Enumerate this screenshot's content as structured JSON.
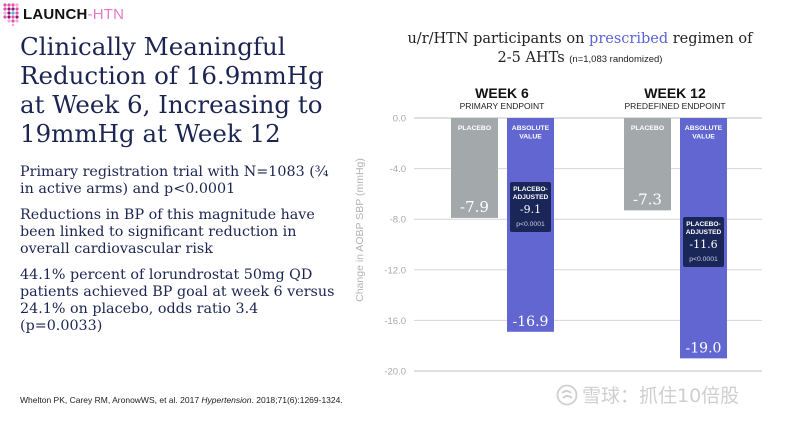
{
  "logo": {
    "brand": "LAUNCH",
    "suffix": "-HTN",
    "icon": "dot-grid-logo-icon"
  },
  "title": "Clinically Meaningful Reduction of 16.9mmHg at Week 6, Increasing to 19mmHg at Week 12",
  "bullets": [
    "Primary registration trial with N=1083 (¾ in active arms) and p<0.0001",
    "Reductions in BP of this magnitude have been linked to significant reduction in overall cardiovascular risk",
    "44.1% percent of lorundrostat 50mg QD patients achieved BP goal at week 6 versus 24.1% on placebo, odds ratio 3.4 (p=0.0033)"
  ],
  "citation": {
    "authors": "Whelton PK, Carey RM, AronowWS, et al. 2017 ",
    "journal": "Hypertension",
    "details": ". 2018;71(6):1269-1324."
  },
  "chart_title": {
    "part1": "u/r/HTN participants on ",
    "highlight": "prescribed",
    "part2": " regimen of",
    "line2": "2-5 AHTs ",
    "note": "(n=1,083 randomized)"
  },
  "colors": {
    "placebo": "#a3a8ab",
    "absolute": "#6266d1",
    "adjusted_box": "#1a2657",
    "grid": "#d6d6d6",
    "highlight": "#5a63d3"
  },
  "watermark": {
    "icon": "snowball-logo-icon",
    "text": "雪球：抓住10倍股"
  },
  "chart_data": {
    "type": "bar",
    "title": "u/r/HTN participants on prescribed regimen of 2-5 AHTs (n=1,083 randomized)",
    "xlabel": "",
    "ylabel": "Change in AOBP SBP (mmHg)",
    "ylim": [
      -20,
      0
    ],
    "yticks": [
      "0.0",
      "-4.0",
      "-8.0",
      "-12.0",
      "-16.0",
      "-20.0"
    ],
    "ytick_values": [
      0,
      -4,
      -8,
      -12,
      -16,
      -20
    ],
    "grid": true,
    "groups": [
      {
        "label": "WEEK 6",
        "sublabel": "PRIMARY ENDPOINT"
      },
      {
        "label": "WEEK 12",
        "sublabel": "PREDEFINED ENDPOINT"
      }
    ],
    "series": [
      {
        "name": "PLACEBO",
        "label": "PLACEBO",
        "values": [
          -7.9,
          -7.3
        ],
        "value_labels": [
          "-7.9",
          "-7.3"
        ]
      },
      {
        "name": "ABSOLUTE VALUE",
        "label": "ABSOLUTE VALUE",
        "values": [
          -16.9,
          -19.0
        ],
        "value_labels": [
          "-16.9",
          "-19.0"
        ]
      }
    ],
    "annotations": [
      {
        "group": 0,
        "title": "PLACEBO-ADJUSTED",
        "value": "-9.1",
        "p": "p<0.0001"
      },
      {
        "group": 1,
        "title": "PLACEBO-ADJUSTED",
        "value": "-11.6",
        "p": "p<0.0001"
      }
    ]
  }
}
